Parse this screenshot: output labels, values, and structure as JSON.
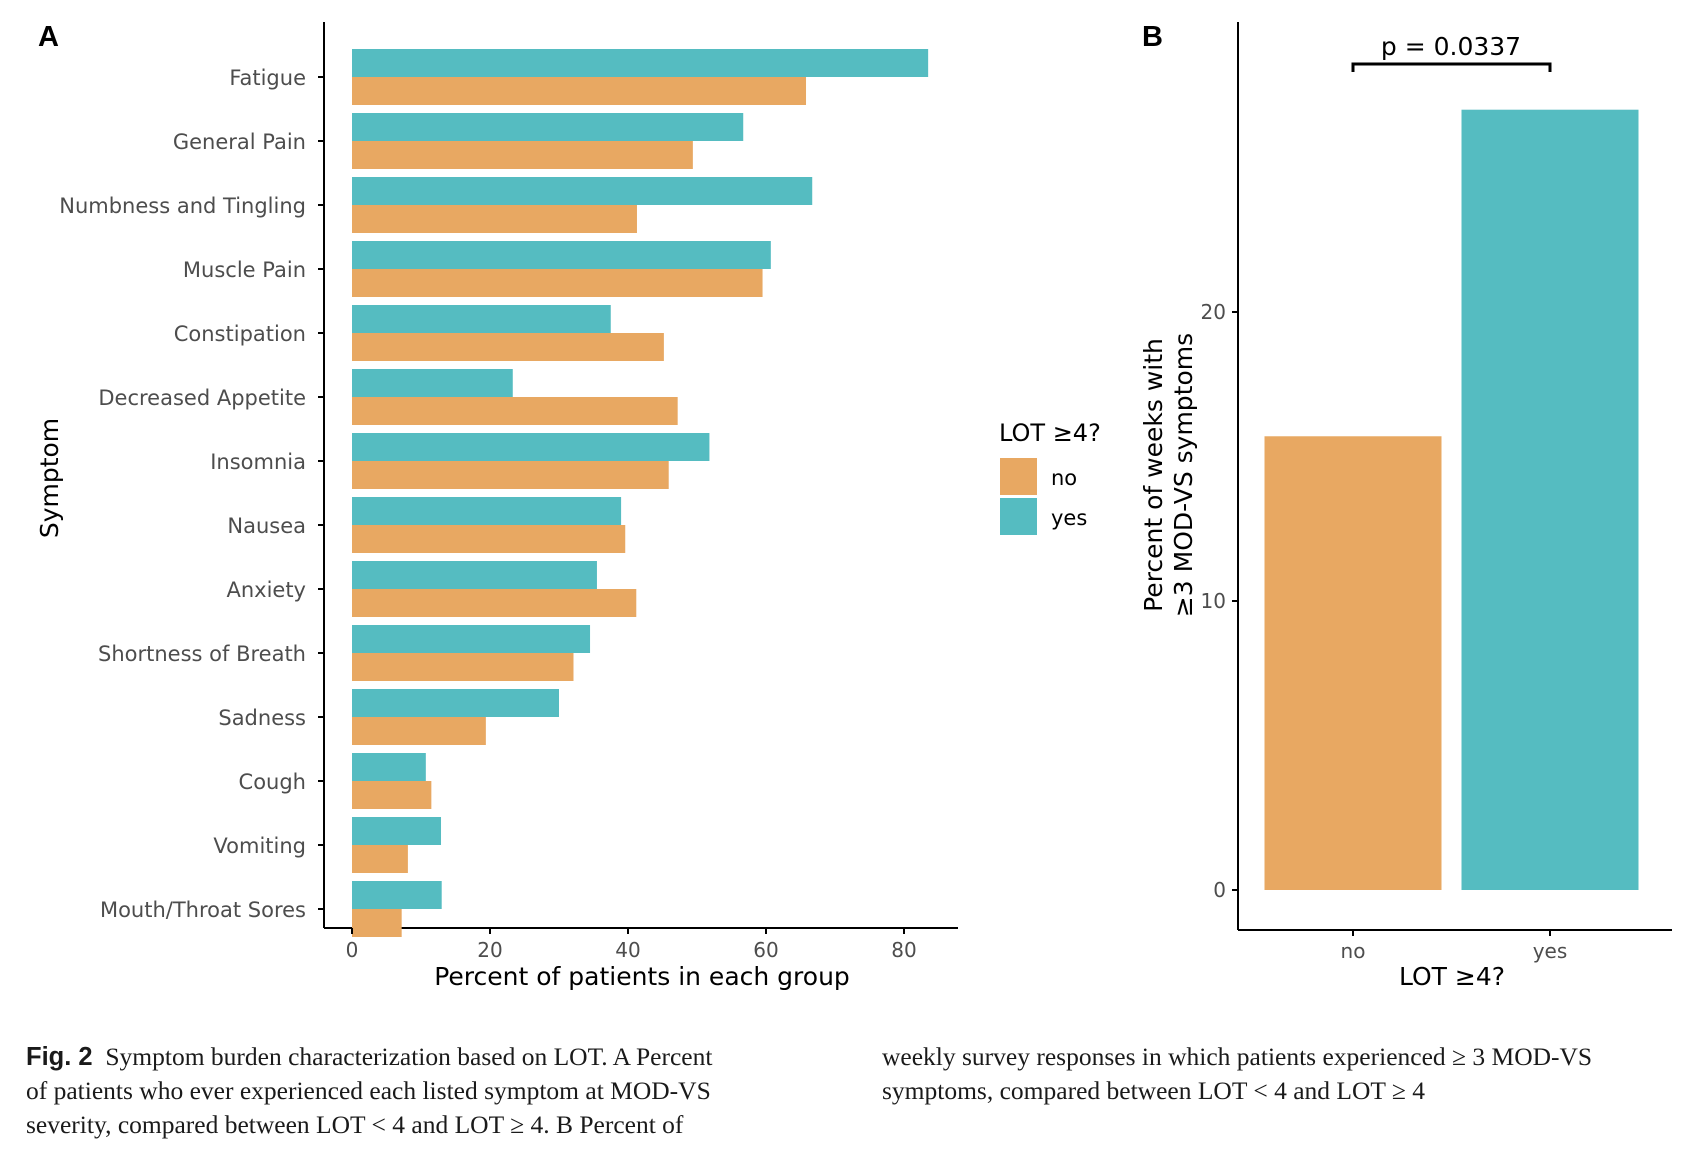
{
  "colors": {
    "no": "#E8A862",
    "yes": "#55BCC1",
    "axis": "#000000",
    "tick_text": "#4d4d4d"
  },
  "chart_data": [
    {
      "panel": "A",
      "type": "bar",
      "orientation": "horizontal",
      "categories": [
        "Fatigue",
        "General Pain",
        "Numbness and Tingling",
        "Muscle Pain",
        "Constipation",
        "Decreased Appetite",
        "Insomnia",
        "Nausea",
        "Anxiety",
        "Shortness of Breath",
        "Sadness",
        "Cough",
        "Vomiting",
        "Mouth/Throat Sores"
      ],
      "series": [
        {
          "name": "yes",
          "values": [
            83.5,
            56.7,
            66.7,
            60.7,
            37.5,
            23.3,
            51.8,
            39.0,
            35.5,
            34.5,
            30.0,
            10.7,
            12.9,
            13.0
          ]
        },
        {
          "name": "no",
          "values": [
            65.8,
            49.4,
            41.3,
            59.5,
            45.2,
            47.2,
            45.9,
            39.6,
            41.2,
            32.1,
            19.4,
            11.5,
            8.1,
            7.2
          ]
        }
      ],
      "xlabel": "Percent of patients in each group",
      "ylabel": "Symptom",
      "xlim": [
        -4,
        87
      ],
      "xticks": [
        "0",
        "20",
        "40",
        "60",
        "80"
      ],
      "xtick_values": [
        0,
        20,
        40,
        60,
        80
      ],
      "grid": false,
      "legend": {
        "title": "LOT ≥4?",
        "entries": [
          "no",
          "yes"
        ],
        "placement": "right"
      }
    },
    {
      "panel": "B",
      "type": "bar",
      "categories": [
        "no",
        "yes"
      ],
      "values": [
        15.7,
        27.0
      ],
      "xlabel": "LOT ≥4?",
      "ylabel_line1": "Percent of weeks with",
      "ylabel_line2": "≥3 MOD-VS symptoms",
      "ylim": [
        -1.2,
        30
      ],
      "yticks": [
        "0",
        "10",
        "20"
      ],
      "ytick_values": [
        0,
        10,
        20
      ],
      "grid": false,
      "annotation": "p = 0.0337"
    }
  ],
  "panel_labels": {
    "a": "A",
    "b": "B"
  },
  "caption": {
    "label": "Fig. 2",
    "left_line1": "Symptom burden characterization based on LOT. A Percent",
    "left_line2": "of patients who ever experienced each listed symptom at MOD-VS",
    "left_line3": "severity, compared between LOT < 4 and LOT ≥ 4. B Percent of",
    "right_line1": "weekly survey responses in which patients experienced ≥ 3 MOD-VS",
    "right_line2": "symptoms, compared between LOT < 4 and LOT ≥ 4"
  }
}
